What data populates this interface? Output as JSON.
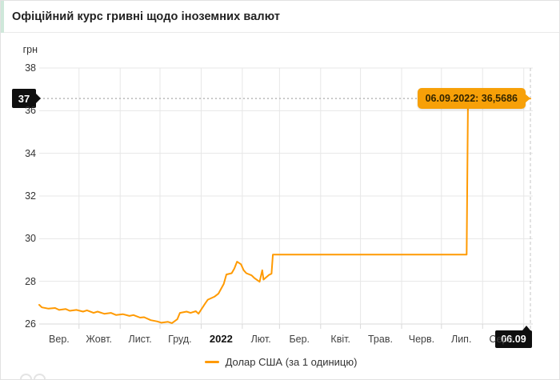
{
  "header": {
    "title": "Офіційний курс гривні щодо іноземних валют",
    "accent_color": "#cfe8da"
  },
  "chart_data": {
    "type": "line",
    "title": "Офіційний курс гривні щодо іноземних валют",
    "grid": true,
    "legend_position": "bottom",
    "y_axis": {
      "label": "грн",
      "min": 26,
      "max": 38,
      "ticks": [
        38,
        36,
        34,
        32,
        30,
        28,
        26
      ]
    },
    "x_axis": {
      "range": [
        "2021-09-01",
        "2022-09-06"
      ],
      "gridline_dates": [
        "2021-10-01",
        "2021-11-01",
        "2021-12-01",
        "2022-01-01",
        "2022-02-01",
        "2022-03-01",
        "2022-04-01",
        "2022-05-01",
        "2022-06-01",
        "2022-07-01",
        "2022-08-01",
        "2022-09-01"
      ],
      "tick_labels": [
        {
          "label": "Вер.",
          "mid": "2021-09-16",
          "bold": false
        },
        {
          "label": "Жовт.",
          "mid": "2021-10-16",
          "bold": false
        },
        {
          "label": "Лист.",
          "mid": "2021-11-16",
          "bold": false
        },
        {
          "label": "Груд.",
          "mid": "2021-12-16",
          "bold": false
        },
        {
          "label": "2022",
          "mid": "2022-01-16",
          "bold": true
        },
        {
          "label": "Лют.",
          "mid": "2022-02-15",
          "bold": false
        },
        {
          "label": "Бер.",
          "mid": "2022-03-16",
          "bold": false
        },
        {
          "label": "Квіт.",
          "mid": "2022-04-16",
          "bold": false
        },
        {
          "label": "Трав.",
          "mid": "2022-05-16",
          "bold": false
        },
        {
          "label": "Черв.",
          "mid": "2022-06-16",
          "bold": false
        },
        {
          "label": "Лип.",
          "mid": "2022-07-16",
          "bold": false
        },
        {
          "label": "Серп.",
          "mid": "2022-08-16",
          "bold": false
        }
      ]
    },
    "series": [
      {
        "name": "Долар США (за 1 одиницю)",
        "color": "#ff9a02",
        "points": [
          {
            "d": "2021-09-01",
            "v": 26.9
          },
          {
            "d": "2021-09-03",
            "v": 26.78
          },
          {
            "d": "2021-09-08",
            "v": 26.72
          },
          {
            "d": "2021-09-13",
            "v": 26.75
          },
          {
            "d": "2021-09-16",
            "v": 26.66
          },
          {
            "d": "2021-09-21",
            "v": 26.7
          },
          {
            "d": "2021-09-24",
            "v": 26.62
          },
          {
            "d": "2021-09-29",
            "v": 26.66
          },
          {
            "d": "2021-10-04",
            "v": 26.58
          },
          {
            "d": "2021-10-07",
            "v": 26.64
          },
          {
            "d": "2021-10-12",
            "v": 26.52
          },
          {
            "d": "2021-10-15",
            "v": 26.58
          },
          {
            "d": "2021-10-20",
            "v": 26.48
          },
          {
            "d": "2021-10-25",
            "v": 26.52
          },
          {
            "d": "2021-10-29",
            "v": 26.42
          },
          {
            "d": "2021-11-03",
            "v": 26.46
          },
          {
            "d": "2021-11-08",
            "v": 26.38
          },
          {
            "d": "2021-11-11",
            "v": 26.42
          },
          {
            "d": "2021-11-16",
            "v": 26.3
          },
          {
            "d": "2021-11-19",
            "v": 26.32
          },
          {
            "d": "2021-11-24",
            "v": 26.18
          },
          {
            "d": "2021-11-29",
            "v": 26.12
          },
          {
            "d": "2021-12-02",
            "v": 26.06
          },
          {
            "d": "2021-12-07",
            "v": 26.1
          },
          {
            "d": "2021-12-10",
            "v": 26.04
          },
          {
            "d": "2021-12-14",
            "v": 26.22
          },
          {
            "d": "2021-12-16",
            "v": 26.52
          },
          {
            "d": "2021-12-21",
            "v": 26.58
          },
          {
            "d": "2021-12-24",
            "v": 26.52
          },
          {
            "d": "2021-12-28",
            "v": 26.6
          },
          {
            "d": "2021-12-30",
            "v": 26.48
          },
          {
            "d": "2022-01-04",
            "v": 26.96
          },
          {
            "d": "2022-01-06",
            "v": 27.14
          },
          {
            "d": "2022-01-11",
            "v": 27.28
          },
          {
            "d": "2022-01-14",
            "v": 27.42
          },
          {
            "d": "2022-01-18",
            "v": 27.88
          },
          {
            "d": "2022-01-20",
            "v": 28.32
          },
          {
            "d": "2022-01-24",
            "v": 28.38
          },
          {
            "d": "2022-01-26",
            "v": 28.6
          },
          {
            "d": "2022-01-28",
            "v": 28.92
          },
          {
            "d": "2022-01-31",
            "v": 28.8
          },
          {
            "d": "2022-02-02",
            "v": 28.52
          },
          {
            "d": "2022-02-04",
            "v": 28.38
          },
          {
            "d": "2022-02-08",
            "v": 28.28
          },
          {
            "d": "2022-02-10",
            "v": 28.16
          },
          {
            "d": "2022-02-14",
            "v": 27.98
          },
          {
            "d": "2022-02-16",
            "v": 28.52
          },
          {
            "d": "2022-02-17",
            "v": 28.08
          },
          {
            "d": "2022-02-21",
            "v": 28.3
          },
          {
            "d": "2022-02-23",
            "v": 28.36
          },
          {
            "d": "2022-02-24",
            "v": 29.2549
          },
          {
            "d": "2022-07-20",
            "v": 29.2549
          },
          {
            "d": "2022-07-21",
            "v": 36.5686
          },
          {
            "d": "2022-09-06",
            "v": 36.5686
          }
        ]
      }
    ],
    "crosshair": {
      "date": "2022-09-06",
      "value": 36.5686,
      "y_badge": "37",
      "x_badge": "06.09",
      "tooltip": "06.09.2022: 36,5686",
      "tooltip_bg": "#f7a008",
      "badge_bg": "#0f0f0f"
    }
  },
  "legend": {
    "label": "Долар США (за 1 одиницю)"
  }
}
